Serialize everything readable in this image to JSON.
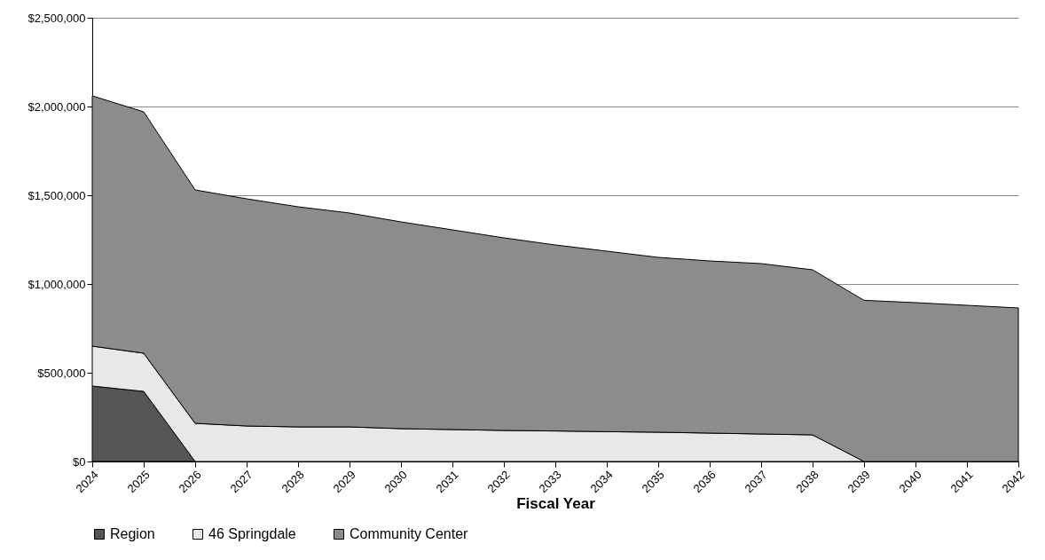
{
  "chart_data": {
    "type": "area",
    "stacked": true,
    "xlabel": "Fiscal Year",
    "categories": [
      "2024",
      "2025",
      "2026",
      "2027",
      "2028",
      "2029",
      "2030",
      "2031",
      "2032",
      "2033",
      "2034",
      "2035",
      "2036",
      "2037",
      "2038",
      "2039",
      "2040",
      "2041",
      "2042"
    ],
    "series": [
      {
        "name": "Region",
        "color": "#555555",
        "values": [
          425000,
          395000,
          0,
          0,
          0,
          0,
          0,
          0,
          0,
          0,
          0,
          0,
          0,
          0,
          0,
          0,
          0,
          0,
          0
        ]
      },
      {
        "name": "46 Springdale",
        "color": "#e8e8e8",
        "values": [
          225000,
          215000,
          215000,
          200000,
          195000,
          195000,
          185000,
          180000,
          175000,
          172000,
          168000,
          165000,
          160000,
          155000,
          150000,
          0,
          0,
          0,
          0
        ]
      },
      {
        "name": "Community Center",
        "color": "#8c8c8c",
        "values": [
          1410000,
          1360000,
          1315000,
          1280000,
          1240000,
          1205000,
          1165000,
          1125000,
          1085000,
          1048000,
          1017000,
          985000,
          970000,
          960000,
          930000,
          908000,
          895000,
          880000,
          865000
        ]
      }
    ],
    "ylim": [
      0,
      2500000
    ],
    "yticks": [
      {
        "value": 0,
        "label": "$0"
      },
      {
        "value": 500000,
        "label": "$500,000"
      },
      {
        "value": 1000000,
        "label": "$1,000,000"
      },
      {
        "value": 1500000,
        "label": "$1,500,000"
      },
      {
        "value": 2000000,
        "label": "$2,000,000"
      },
      {
        "value": 2500000,
        "label": "$2,500,000"
      }
    ],
    "grid": "y",
    "legend": "bottom"
  }
}
